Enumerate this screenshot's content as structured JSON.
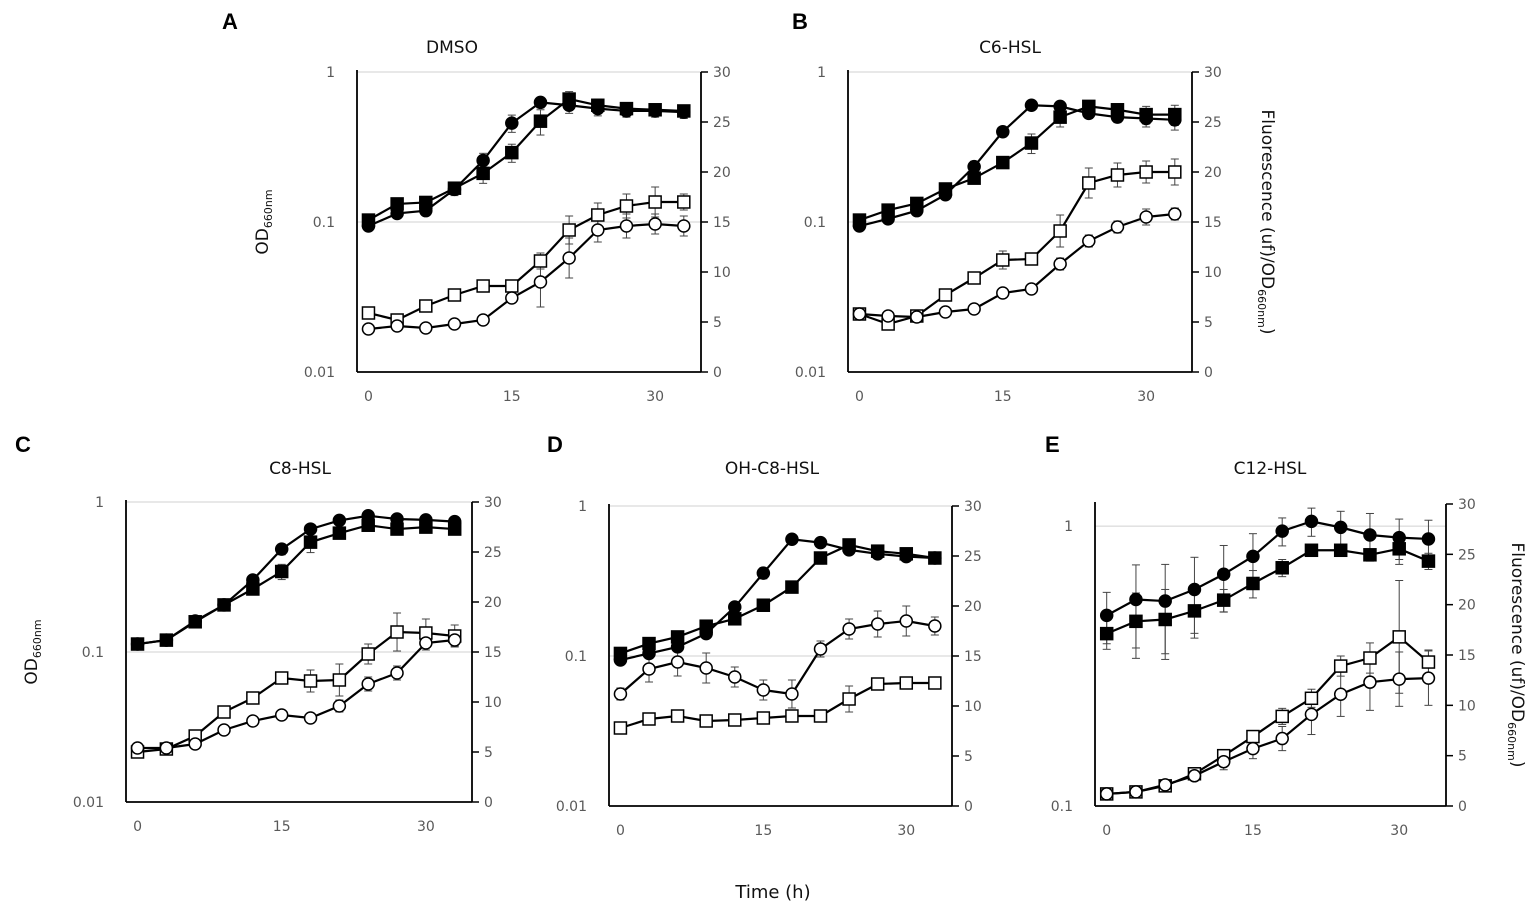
{
  "chart_data": {
    "type": "line",
    "xlabel": "Time (h)",
    "x": [
      0,
      3,
      6,
      9,
      12,
      15,
      18,
      21,
      24,
      27,
      30,
      33
    ],
    "xticks": [
      "0",
      "15",
      "30"
    ],
    "right_ticks": [
      "0",
      "5",
      "10",
      "15",
      "20",
      "25",
      "30"
    ],
    "panels": [
      {
        "letter": "A",
        "title": "DMSO",
        "ylabel_left": {
          "main": "OD",
          "sub": "660nm"
        },
        "left_ticks": [
          "1",
          "0.1",
          "0.01"
        ],
        "left_range": [
          0.01,
          1
        ],
        "right_range": [
          0,
          30
        ],
        "series": [
          {
            "name": "OD filled circle",
            "axis": "left",
            "marker": "circle",
            "fill": true,
            "values": [
              0.094,
              0.114,
              0.119,
              0.165,
              0.257,
              0.456,
              0.627,
              0.6,
              0.57,
              0.55,
              0.55,
              0.54
            ],
            "err": [
              0.005,
              0.006,
              0.008,
              0.015,
              0.03,
              0.06,
              0.05,
              0.07,
              0.06,
              0.05,
              0.05,
              0.05
            ]
          },
          {
            "name": "OD filled square",
            "axis": "left",
            "marker": "square",
            "fill": true,
            "values": [
              0.103,
              0.132,
              0.135,
              0.168,
              0.211,
              0.29,
              0.47,
              0.66,
              0.6,
              0.57,
              0.56,
              0.55
            ],
            "err": [
              0.005,
              0.008,
              0.008,
              0.012,
              0.03,
              0.04,
              0.09,
              0.08,
              0.06,
              0.05,
              0.05,
              0.05
            ]
          },
          {
            "name": "Fluorescence open square",
            "axis": "right",
            "marker": "square",
            "fill": false,
            "values": [
              5.9,
              5.2,
              6.6,
              7.7,
              8.6,
              8.6,
              11.1,
              14.2,
              15.7,
              16.6,
              17.0,
              17.0
            ],
            "err": [
              0.2,
              0.2,
              0.3,
              0.4,
              0.5,
              0.6,
              0.8,
              1.4,
              1.2,
              1.2,
              1.5,
              0.8
            ]
          },
          {
            "name": "Fluorescence open circle",
            "axis": "right",
            "marker": "circle",
            "fill": false,
            "values": [
              4.3,
              4.6,
              4.4,
              4.8,
              5.2,
              7.4,
              9.0,
              11.4,
              14.2,
              14.6,
              14.8,
              14.6
            ],
            "err": [
              0.1,
              0.1,
              0.1,
              0.2,
              0.2,
              0.3,
              2.5,
              2.0,
              1.2,
              1.2,
              1.0,
              1.0
            ]
          }
        ]
      },
      {
        "letter": "B",
        "title": "C6-HSL",
        "ylabel_right": {
          "main": "Fluorescence (uf)/OD",
          "sub": "660nm",
          "tail": ")"
        },
        "left_ticks": [
          "1",
          "0.1",
          "0.01"
        ],
        "left_range": [
          0.01,
          1
        ],
        "right_range": [
          0,
          30
        ],
        "series": [
          {
            "name": "OD filled circle",
            "axis": "left",
            "marker": "circle",
            "fill": true,
            "values": [
              0.094,
              0.105,
              0.119,
              0.152,
              0.234,
              0.4,
              0.6,
              0.59,
              0.53,
              0.5,
              0.49,
              0.48
            ],
            "err": [
              0.004,
              0.005,
              0.006,
              0.01,
              0.02,
              0.03,
              0.03,
              0.04,
              0.04,
              0.04,
              0.06,
              0.07
            ]
          },
          {
            "name": "OD filled square",
            "axis": "left",
            "marker": "square",
            "fill": true,
            "values": [
              0.103,
              0.12,
              0.133,
              0.166,
              0.196,
              0.249,
              0.336,
              0.5,
              0.59,
              0.56,
              0.52,
              0.52
            ],
            "err": [
              0.004,
              0.005,
              0.006,
              0.01,
              0.01,
              0.02,
              0.05,
              0.07,
              0.04,
              0.04,
              0.07,
              0.08
            ]
          },
          {
            "name": "Fluorescence open square",
            "axis": "right",
            "marker": "square",
            "fill": false,
            "values": [
              5.8,
              4.8,
              5.6,
              7.7,
              9.4,
              11.2,
              11.3,
              14.1,
              18.9,
              19.7,
              20.0,
              20.0
            ],
            "err": [
              0.2,
              0.2,
              0.2,
              0.4,
              0.6,
              0.9,
              0.5,
              1.6,
              1.5,
              1.2,
              1.1,
              1.3
            ]
          },
          {
            "name": "Fluorescence open circle",
            "axis": "right",
            "marker": "circle",
            "fill": false,
            "values": [
              5.8,
              5.6,
              5.5,
              6.0,
              6.3,
              7.9,
              8.3,
              10.8,
              13.1,
              14.5,
              15.5,
              15.8
            ],
            "err": [
              0.2,
              0.2,
              0.2,
              0.2,
              0.2,
              0.3,
              0.3,
              0.6,
              0.6,
              0.6,
              0.8,
              0.6
            ]
          }
        ]
      },
      {
        "letter": "C",
        "title": "C8-HSL",
        "ylabel_left": {
          "main": "OD",
          "sub": "660nm"
        },
        "left_ticks": [
          "1",
          "0.1",
          "0.01"
        ],
        "left_range": [
          0.01,
          1
        ],
        "right_range": [
          0,
          30
        ],
        "series": [
          {
            "name": "OD filled circle",
            "axis": "left",
            "marker": "circle",
            "fill": true,
            "values": [
              0.113,
              0.12,
              0.161,
              0.206,
              0.302,
              0.485,
              0.66,
              0.754,
              0.81,
              0.77,
              0.76,
              0.74
            ],
            "err": [
              0.004,
              0.004,
              0.006,
              0.01,
              0.02,
              0.04,
              0.04,
              0.03,
              0.04,
              0.03,
              0.03,
              0.03
            ]
          },
          {
            "name": "OD filled square",
            "axis": "left",
            "marker": "square",
            "fill": true,
            "values": [
              0.113,
              0.12,
              0.159,
              0.206,
              0.263,
              0.344,
              0.54,
              0.62,
              0.7,
              0.66,
              0.68,
              0.66
            ],
            "err": [
              0.004,
              0.004,
              0.006,
              0.01,
              0.015,
              0.04,
              0.08,
              0.04,
              0.03,
              0.03,
              0.03,
              0.03
            ]
          },
          {
            "name": "Fluorescence open square",
            "axis": "right",
            "marker": "square",
            "fill": false,
            "values": [
              5.0,
              5.3,
              6.6,
              9.0,
              10.4,
              12.4,
              12.1,
              12.2,
              14.8,
              17.0,
              16.9,
              16.6
            ],
            "err": [
              0.2,
              0.2,
              0.3,
              0.3,
              0.4,
              0.6,
              1.1,
              1.6,
              1.0,
              1.9,
              1.4,
              1.1
            ]
          },
          {
            "name": "Fluorescence open circle",
            "axis": "right",
            "marker": "circle",
            "fill": false,
            "values": [
              5.4,
              5.4,
              5.8,
              7.2,
              8.1,
              8.7,
              8.4,
              9.6,
              11.8,
              12.9,
              15.9,
              16.2
            ],
            "err": [
              0.2,
              0.2,
              0.2,
              0.3,
              0.3,
              0.3,
              0.3,
              0.6,
              0.7,
              0.7,
              0.7,
              0.6
            ]
          }
        ]
      },
      {
        "letter": "D",
        "title": "OH-C8-HSL",
        "left_ticks": [
          "1",
          "0.1",
          "0.01"
        ],
        "left_range": [
          0.01,
          1
        ],
        "right_range": [
          0,
          30
        ],
        "series": [
          {
            "name": "OD filled circle",
            "axis": "left",
            "marker": "circle",
            "fill": true,
            "values": [
              0.094,
              0.104,
              0.115,
              0.141,
              0.212,
              0.357,
              0.6,
              0.57,
              0.51,
              0.48,
              0.46,
              0.45
            ],
            "err": [
              0.004,
              0.005,
              0.006,
              0.008,
              0.012,
              0.03,
              0.03,
              0.03,
              0.02,
              0.02,
              0.02,
              0.02
            ]
          },
          {
            "name": "OD filled square",
            "axis": "left",
            "marker": "square",
            "fill": true,
            "values": [
              0.104,
              0.121,
              0.134,
              0.158,
              0.177,
              0.218,
              0.288,
              0.45,
              0.55,
              0.5,
              0.48,
              0.45
            ],
            "err": [
              0.004,
              0.005,
              0.006,
              0.008,
              0.01,
              0.01,
              0.015,
              0.04,
              0.03,
              0.02,
              0.02,
              0.02
            ]
          },
          {
            "name": "Fluorescence open circle",
            "axis": "right",
            "marker": "circle",
            "fill": false,
            "values": [
              11.2,
              13.7,
              14.4,
              13.8,
              12.9,
              11.6,
              11.2,
              15.7,
              17.7,
              18.2,
              18.5,
              18.0
            ],
            "err": [
              0.6,
              1.3,
              1.4,
              1.5,
              1.0,
              1.0,
              1.4,
              0.8,
              1.0,
              1.3,
              1.5,
              0.9
            ]
          },
          {
            "name": "Fluorescence open square",
            "axis": "right",
            "marker": "square",
            "fill": false,
            "values": [
              7.8,
              8.7,
              9.0,
              8.5,
              8.6,
              8.8,
              9.0,
              9.0,
              10.7,
              12.2,
              12.3,
              12.3
            ],
            "err": [
              0.2,
              0.3,
              0.3,
              0.6,
              0.3,
              0.3,
              0.3,
              0.3,
              1.3,
              0.6,
              0.3,
              0.3
            ]
          }
        ]
      },
      {
        "letter": "E",
        "title": "C12-HSL",
        "ylabel_right": {
          "main": "Fluorescence (uf)/OD",
          "sub": "660nm",
          "tail": ")"
        },
        "left_ticks": [
          "1",
          "0.1"
        ],
        "left_range": [
          0.1,
          1.2
        ],
        "right_range": [
          0,
          30
        ],
        "series": [
          {
            "name": "OD filled circle",
            "axis": "left",
            "marker": "circle",
            "fill": true,
            "values": [
              0.48,
              0.547,
              0.54,
              0.594,
              0.673,
              0.78,
              0.96,
              1.04,
              0.99,
              0.93,
              0.91,
              0.9
            ],
            "err": [
              0.1,
              0.18,
              0.19,
              0.18,
              0.18,
              0.16,
              0.11,
              0.12,
              0.14,
              0.18,
              0.15,
              0.15
            ]
          },
          {
            "name": "OD filled square",
            "axis": "left",
            "marker": "square",
            "fill": true,
            "values": [
              0.413,
              0.457,
              0.464,
              0.498,
              0.544,
              0.624,
              0.71,
              0.82,
              0.82,
              0.79,
              0.83,
              0.75
            ],
            "err": [
              0.05,
              0.12,
              0.13,
              0.1,
              0.05,
              0.07,
              0.05,
              0.04,
              0.04,
              0.03,
              0.1,
              0.05
            ]
          },
          {
            "name": "Fluorescence open square",
            "axis": "right",
            "marker": "square",
            "fill": false,
            "values": [
              1.2,
              1.4,
              2.0,
              3.2,
              5.0,
              6.9,
              8.9,
              10.7,
              13.9,
              14.7,
              16.8,
              14.3
            ],
            "err": [
              0.1,
              0.1,
              0.2,
              0.3,
              0.4,
              0.6,
              0.8,
              0.9,
              1.0,
              1.5,
              5.6,
              1.2
            ]
          },
          {
            "name": "Fluorescence open circle",
            "axis": "right",
            "marker": "circle",
            "fill": false,
            "values": [
              1.2,
              1.4,
              2.1,
              3.0,
              4.4,
              5.7,
              6.7,
              9.1,
              11.1,
              12.3,
              12.6,
              12.7
            ],
            "err": [
              0.1,
              0.1,
              0.2,
              0.4,
              0.8,
              1.0,
              1.2,
              2.0,
              2.2,
              2.8,
              2.7,
              2.7
            ]
          }
        ]
      }
    ]
  }
}
